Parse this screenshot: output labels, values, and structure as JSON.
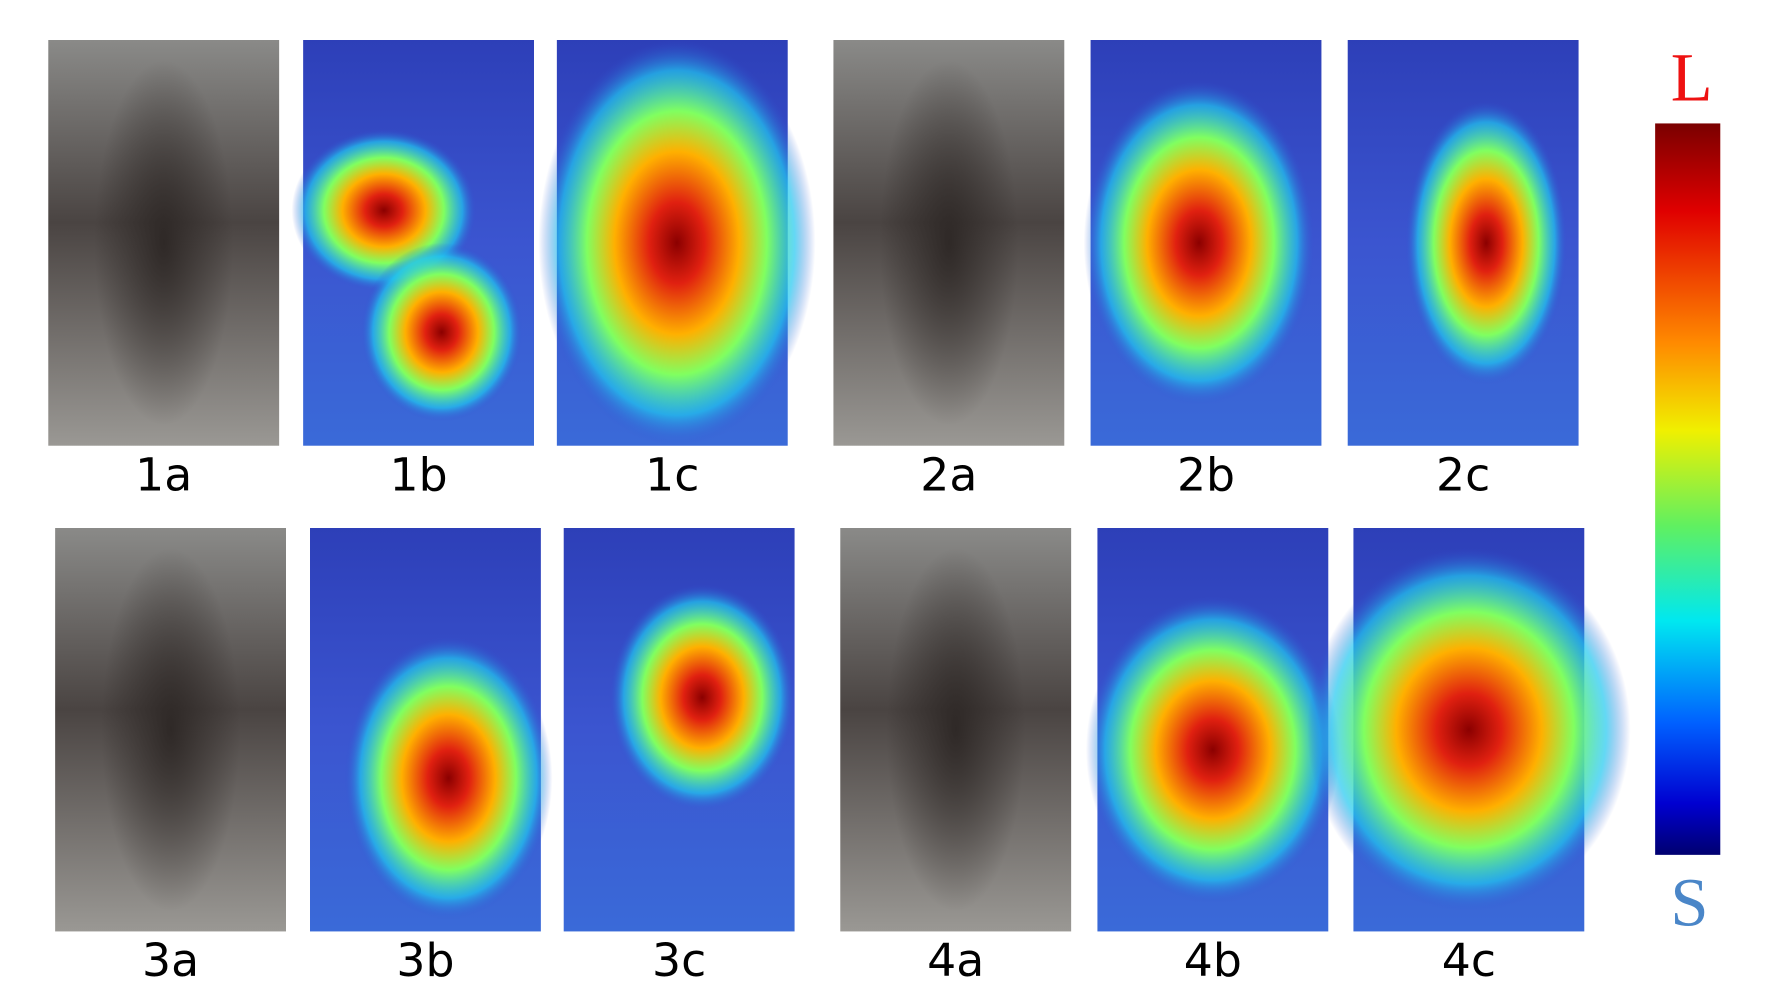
{
  "panels": [
    {
      "label": "1a"
    },
    {
      "label": "1b"
    },
    {
      "label": "1c"
    },
    {
      "label": "2a"
    },
    {
      "label": "2b"
    },
    {
      "label": "2c"
    },
    {
      "label": "3a"
    },
    {
      "label": "3b"
    },
    {
      "label": "3c"
    },
    {
      "label": "4a"
    },
    {
      "label": "4b"
    },
    {
      "label": "4c"
    }
  ],
  "legend": {
    "high": "L",
    "low": "S"
  }
}
